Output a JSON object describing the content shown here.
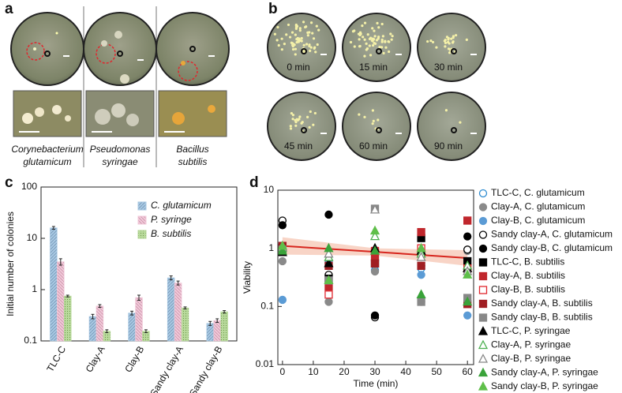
{
  "panel_a": {
    "label": "a",
    "captions": [
      [
        "Corynebacterium",
        "glutamicum"
      ],
      [
        "Pseudomonas",
        "syringae"
      ],
      [
        "Bacillus",
        "subtilis"
      ]
    ]
  },
  "panel_b": {
    "label": "b",
    "times": [
      "0 min",
      "15 min",
      "30 min",
      "45 min",
      "60 min",
      "90 min"
    ]
  },
  "chart_data": [
    {
      "type": "bar",
      "panel_label": "c",
      "ylabel": "Initial number of colonies",
      "log_y": true,
      "categories": [
        "TLC-C",
        "Clay-A",
        "Clay-B",
        "Sandy clay-A",
        "Sandy clay-B"
      ],
      "ylim": [
        0.1,
        100
      ],
      "yticks": [
        0.1,
        1,
        10,
        100
      ],
      "legend": "upper right",
      "series": [
        {
          "name": "C. glutamicum",
          "color": "#a8c8e2",
          "values": [
            16,
            0.3,
            0.35,
            1.7,
            0.22
          ],
          "errors": [
            1,
            0.03,
            0.03,
            0.15,
            0.02
          ]
        },
        {
          "name": "P. syringe",
          "color": "#f0c8d8",
          "values": [
            3.5,
            0.48,
            0.7,
            1.35,
            0.25
          ],
          "errors": [
            0.5,
            0.03,
            0.08,
            0.12,
            0.02
          ]
        },
        {
          "name": "B. subtilis",
          "color": "#b9da9c",
          "values": [
            0.75,
            0.155,
            0.155,
            0.44,
            0.37
          ],
          "errors": [
            0.03,
            0.01,
            0.01,
            0.02,
            0.02
          ]
        }
      ]
    },
    {
      "type": "scatter",
      "panel_label": "d",
      "xlabel": "Time (min)",
      "ylabel": "Viability",
      "log_y": true,
      "xlim": [
        -1.5,
        62
      ],
      "xticks": [
        0,
        10,
        20,
        30,
        40,
        50,
        60
      ],
      "ylim": [
        0.01,
        10
      ],
      "yticks": [
        0.01,
        0.1,
        1,
        10
      ],
      "legend": "right",
      "fit": {
        "color": "#d7261e",
        "band_color": "#f6c9b8",
        "x": [
          0,
          30,
          60
        ],
        "values": [
          1.1,
          0.87,
          0.68
        ],
        "lower": [
          0.78,
          0.75,
          0.5
        ],
        "upper": [
          1.55,
          1.0,
          0.93
        ]
      },
      "series": [
        {
          "name": "TLC-C, C. glutamicum",
          "marker": "circle",
          "color": "#2e8bd0",
          "filled": false,
          "x": [
            0,
            15,
            30,
            45,
            60
          ],
          "values": [
            1.0,
            0.55,
            0.42,
            0.45,
            0.4
          ]
        },
        {
          "name": "Clay-A, C. glutamicum",
          "marker": "circle",
          "color": "#8a8a8a",
          "filled": true,
          "x": [
            0,
            15,
            30,
            45,
            60
          ],
          "values": [
            0.6,
            0.12,
            0.4,
            0.12,
            0.9
          ]
        },
        {
          "name": "Clay-B, C. glutamicum",
          "marker": "circle",
          "color": "#5b9bd5",
          "filled": true,
          "x": [
            0,
            15,
            30,
            45,
            60
          ],
          "values": [
            0.13,
            0.6,
            0.7,
            0.35,
            0.07
          ]
        },
        {
          "name": "Sandy clay-A, C. glutamicum",
          "marker": "circle",
          "color": "#000000",
          "filled": false,
          "x": [
            0,
            15,
            30,
            45,
            60
          ],
          "values": [
            3.0,
            0.35,
            0.065,
            0.8,
            0.95
          ]
        },
        {
          "name": "Sandy clay-B, C. glutamicum",
          "marker": "circle",
          "color": "#000000",
          "filled": true,
          "x": [
            0,
            15,
            30,
            45,
            60
          ],
          "values": [
            2.5,
            3.8,
            0.07,
            0.5,
            1.6
          ]
        },
        {
          "name": "TLC-C, B. subtilis",
          "marker": "square",
          "color": "#000000",
          "filled": true,
          "x": [
            0,
            15,
            30,
            45,
            60
          ],
          "values": [
            1.0,
            0.3,
            0.55,
            1.5,
            0.6
          ]
        },
        {
          "name": "Clay-A, B. subtilis",
          "marker": "square",
          "color": "#c0272d",
          "filled": true,
          "x": [
            0,
            15,
            30,
            45,
            60
          ],
          "values": [
            0.9,
            0.22,
            0.7,
            1.9,
            3.0
          ]
        },
        {
          "name": "Clay-B, B. subtilis",
          "marker": "square",
          "color": "#e0262d",
          "filled": false,
          "x": [
            0,
            15,
            30,
            45,
            60
          ],
          "values": [
            1.0,
            0.16,
            0.9,
            1.0,
            0.45
          ]
        },
        {
          "name": "Sandy clay-A, B. subtilis",
          "marker": "square",
          "color": "#a01e23",
          "filled": true,
          "x": [
            0,
            15,
            30,
            45,
            60
          ],
          "values": [
            1.1,
            0.5,
            0.55,
            0.5,
            0.11
          ]
        },
        {
          "name": "Sandy clay-B, B. subtilis",
          "marker": "square",
          "color": "#888888",
          "filled": true,
          "x": [
            0,
            15,
            30,
            45,
            60
          ],
          "values": [
            0.95,
            0.28,
            4.8,
            0.12,
            0.14
          ]
        },
        {
          "name": "TLC-C, P. syringae",
          "marker": "triangle",
          "color": "#000000",
          "filled": true,
          "x": [
            0,
            15,
            30,
            45,
            60
          ],
          "values": [
            0.85,
            0.55,
            1.0,
            0.9,
            0.45
          ]
        },
        {
          "name": "Clay-A, P. syringae",
          "marker": "triangle",
          "color": "#4caf50",
          "filled": false,
          "x": [
            0,
            15,
            30,
            45,
            60
          ],
          "values": [
            1.0,
            0.7,
            1.6,
            0.8,
            0.5
          ]
        },
        {
          "name": "Clay-B, P. syringae",
          "marker": "triangle",
          "color": "#888888",
          "filled": false,
          "x": [
            0,
            15,
            30,
            45,
            60
          ],
          "values": [
            1.05,
            0.8,
            4.6,
            0.7,
            0.4
          ]
        },
        {
          "name": "Sandy clay-A, P. syringae",
          "marker": "triangle",
          "color": "#3aa33a",
          "filled": true,
          "x": [
            0,
            15,
            30,
            45,
            60
          ],
          "values": [
            0.9,
            1.0,
            0.9,
            0.16,
            0.12
          ]
        },
        {
          "name": "Sandy clay-B, P. syringae",
          "marker": "triangle",
          "color": "#5fbf4a",
          "filled": true,
          "x": [
            0,
            15,
            30,
            45,
            60
          ],
          "values": [
            1.1,
            0.28,
            2.0,
            1.0,
            0.35
          ]
        }
      ]
    }
  ]
}
